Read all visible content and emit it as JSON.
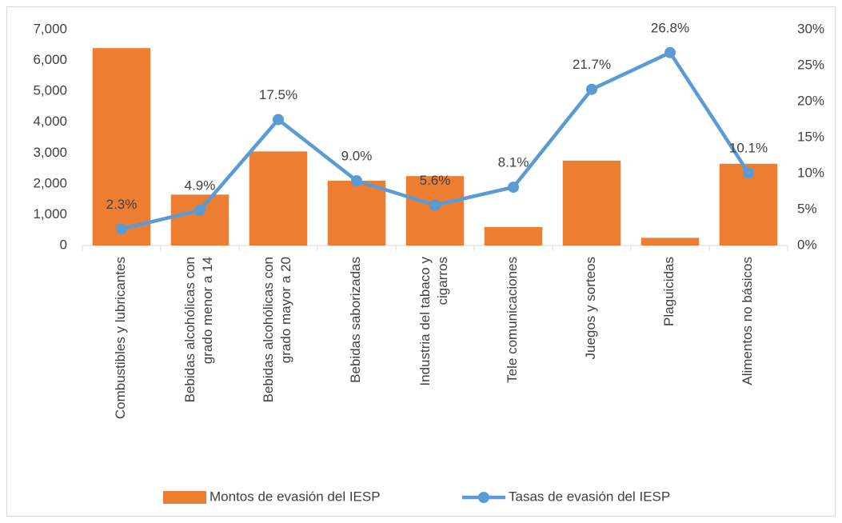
{
  "chart_data": {
    "type": "bar-line",
    "categories": [
      "Combustibles y lubricantes",
      "Bebidas alcohólicas con grado menor a 14",
      "Bebidas alcohólicas con grado mayor a 20",
      "Bebidas saborizadas",
      "Industria del tabaco y cigarros",
      "Tele comunicaciones",
      "Juegos y sorteos",
      "Plaguicidas",
      "Alimentos no básicos"
    ],
    "series": [
      {
        "name": "Montos de evasión del IESP",
        "type": "bar",
        "color": "#ed7d31",
        "values": [
          6400,
          1650,
          3050,
          2100,
          2250,
          600,
          2750,
          250,
          2650
        ]
      },
      {
        "name": "Tasas de evasión del IESP",
        "type": "line",
        "axis": "y2",
        "color": "#5b9bd5",
        "values": [
          2.3,
          4.9,
          17.5,
          9.0,
          5.6,
          8.1,
          21.7,
          26.8,
          10.1
        ],
        "value_labels": [
          "2.3%",
          "4.9%",
          "17.5%",
          "9.0%",
          "5.6%",
          "8.1%",
          "21.7%",
          "26.8%",
          "10.1%"
        ]
      }
    ],
    "ylim": [
      0,
      7000
    ],
    "yticks": [
      0,
      {
        "value": 1000,
        "label": "1,000"
      },
      {
        "value": 2000,
        "label": "2,000"
      },
      {
        "value": 3000,
        "label": "3,000"
      },
      {
        "value": 4000,
        "label": "4,000"
      },
      {
        "value": 5000,
        "label": "5,000"
      },
      {
        "value": 6000,
        "label": "6,000"
      },
      {
        "value": 7000,
        "label": "7,000"
      }
    ],
    "y2lim": [
      0,
      30
    ],
    "y2ticks": [
      {
        "value": 0,
        "label": "0%"
      },
      {
        "value": 5,
        "label": "5%"
      },
      {
        "value": 10,
        "label": "10%"
      },
      {
        "value": 15,
        "label": "15%"
      },
      {
        "value": 20,
        "label": "20%"
      },
      {
        "value": 25,
        "label": "25%"
      },
      {
        "value": 30,
        "label": "30%"
      }
    ],
    "legend": "bottom"
  }
}
